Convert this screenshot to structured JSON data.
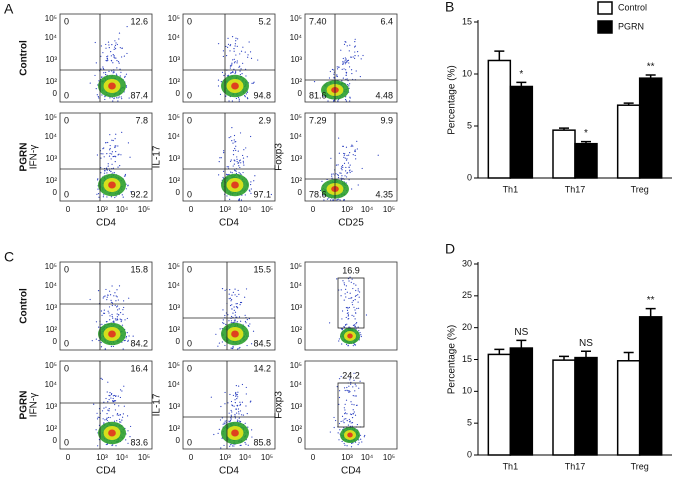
{
  "panels": [
    {
      "label": "A",
      "rows": [
        "Control",
        "PGRN"
      ],
      "y_labels": [
        "IFN-γ",
        "IL-17",
        "Foxp3"
      ],
      "x_labels": [
        "CD4",
        "CD4",
        "CD25"
      ],
      "plots": [
        [
          {
            "tl": "0",
            "tr": "12.6",
            "bl": "0",
            "br": "87.4"
          },
          {
            "tl": "0",
            "tr": "5.2",
            "bl": "0",
            "br": "94.8"
          },
          {
            "tl": "7.40",
            "tr": "6.4",
            "bl": "81.6",
            "br": "4.48"
          }
        ],
        [
          {
            "tl": "0",
            "tr": "7.8",
            "bl": "0",
            "br": "92.2"
          },
          {
            "tl": "0",
            "tr": "2.9",
            "bl": "0",
            "br": "97.1"
          },
          {
            "tl": "7.29",
            "tr": "9.9",
            "bl": "78.6",
            "br": "4.35"
          }
        ]
      ]
    },
    {
      "label": "C",
      "rows": [
        "Control",
        "PGRN"
      ],
      "y_labels": [
        "IFN-γ",
        "IL-17",
        "Foxp3"
      ],
      "x_labels": [
        "CD4",
        "CD4",
        "CD4"
      ],
      "plots": [
        [
          {
            "tl": "0",
            "tr": "15.8",
            "bl": "0",
            "br": "84.2"
          },
          {
            "tl": "0",
            "tr": "15.5",
            "bl": "0",
            "br": "84.5"
          },
          {
            "gate": "16.9"
          }
        ],
        [
          {
            "tl": "0",
            "tr": "16.4",
            "bl": "0",
            "br": "83.6"
          },
          {
            "tl": "0",
            "tr": "14.2",
            "bl": "0",
            "br": "85.8"
          },
          {
            "gate": "24.2"
          }
        ]
      ]
    }
  ],
  "flow_x_ticks": [
    "0",
    "10³",
    "10⁴",
    "10⁵"
  ],
  "flow_y_ticks": [
    "10⁵",
    "10⁴",
    "10³",
    "10²",
    "0"
  ],
  "chart_data": [
    {
      "type": "bar",
      "panel_label": "B",
      "y_label": "Percentage (%)",
      "categories": [
        "Th1",
        "Th17",
        "Treg"
      ],
      "ylim": [
        0,
        15
      ],
      "yticks": [
        0,
        5,
        10,
        15
      ],
      "legend": "top-right",
      "series": [
        {
          "name": "Control",
          "color": "#ffffff",
          "values": [
            11.3,
            4.6,
            7.0
          ],
          "errors": [
            0.9,
            0.2,
            0.2
          ]
        },
        {
          "name": "PGRN",
          "color": "#000000",
          "values": [
            8.8,
            3.3,
            9.6
          ],
          "errors": [
            0.4,
            0.2,
            0.3
          ],
          "annotations": [
            "*",
            "*",
            "**"
          ]
        }
      ]
    },
    {
      "type": "bar",
      "panel_label": "D",
      "y_label": "Percentage (%)",
      "categories": [
        "Th1",
        "Th17",
        "Treg"
      ],
      "ylim": [
        0,
        30
      ],
      "yticks": [
        0,
        5,
        10,
        15,
        20,
        25,
        30
      ],
      "series": [
        {
          "color": "#ffffff",
          "values": [
            15.8,
            14.9,
            14.8
          ],
          "errors": [
            0.8,
            0.6,
            1.3
          ]
        },
        {
          "color": "#000000",
          "values": [
            16.8,
            15.3,
            21.7
          ],
          "errors": [
            1.2,
            1.0,
            1.3
          ],
          "annotations": [
            "NS",
            "NS",
            "**"
          ]
        }
      ]
    }
  ]
}
